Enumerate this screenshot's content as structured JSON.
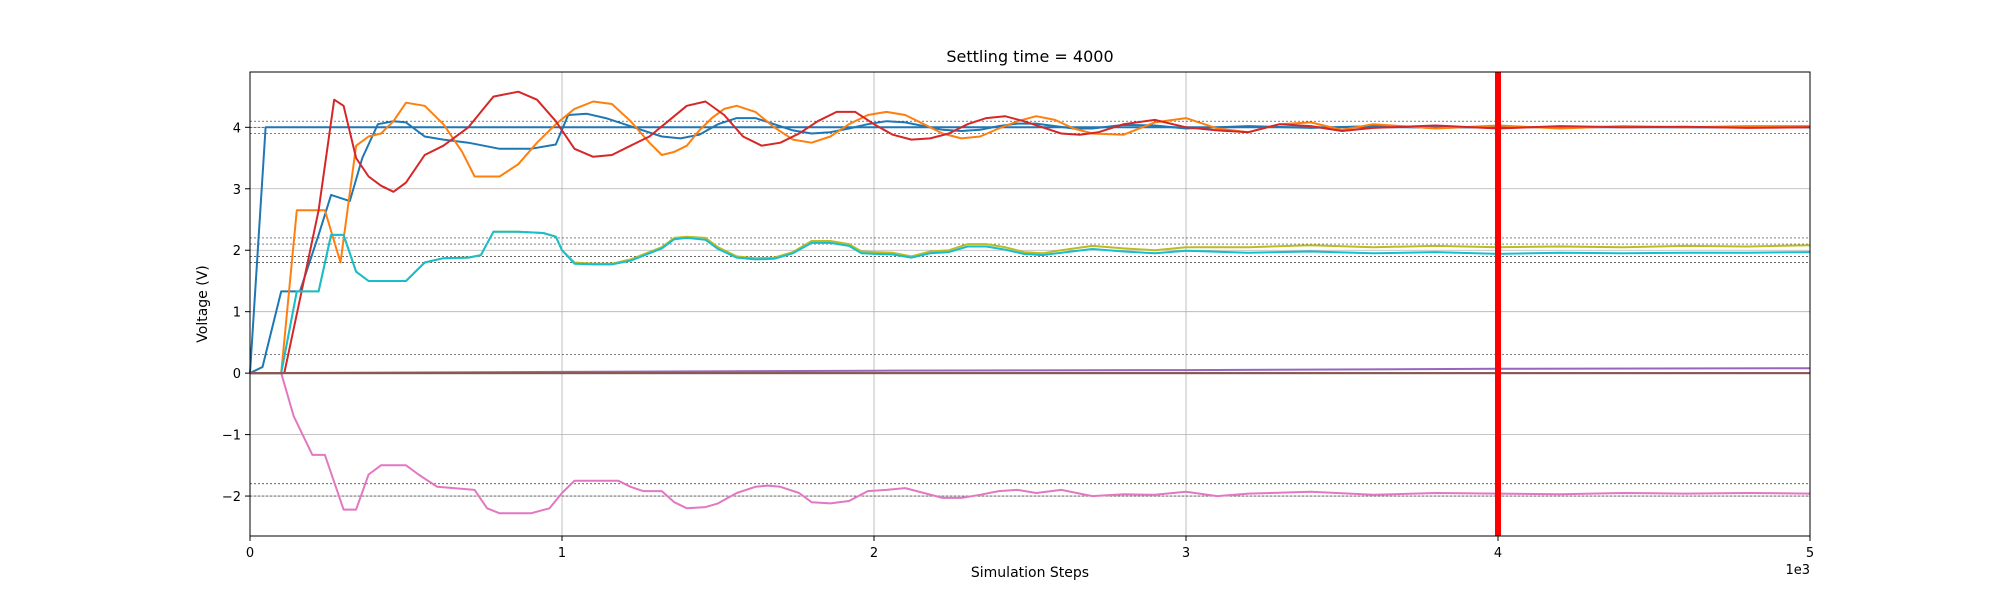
{
  "chart_data": {
    "type": "line",
    "title": "Settling time = 4000",
    "xlabel": "Simulation Steps",
    "ylabel": "Voltage (V)",
    "x_offset_label": "1e3",
    "xlim": [
      0,
      5000
    ],
    "ylim": [
      -2.65,
      4.9
    ],
    "grid": true,
    "x_ticks": [
      0,
      1000,
      2000,
      3000,
      4000,
      5000
    ],
    "x_tick_labels": [
      "0",
      "1",
      "2",
      "3",
      "4",
      "5"
    ],
    "y_ticks": [
      -2,
      -1,
      0,
      1,
      2,
      3,
      4
    ],
    "y_tick_labels": [
      "−2",
      "−1",
      "0",
      "1",
      "2",
      "3",
      "4"
    ],
    "settling_time": 4000,
    "settling_line_color": "#ff0000",
    "reference_lines": [
      4.1,
      4.0,
      3.9,
      2.2,
      2.1,
      1.9,
      1.8,
      0.3,
      -1.8,
      -2.0
    ],
    "series": [
      {
        "color": "#1f77b4",
        "x": [
          0,
          50,
          500,
          1000,
          5000
        ],
        "y": [
          0,
          4.0,
          4.0,
          4.0,
          4.0
        ]
      },
      {
        "color": "#1f77b4",
        "x": [
          0,
          40,
          100,
          160,
          220,
          260,
          320,
          360,
          410,
          460,
          500,
          560,
          620,
          700,
          800,
          900,
          980,
          1020,
          1080,
          1140,
          1200,
          1260,
          1320,
          1380,
          1440,
          1500,
          1560,
          1620,
          1680,
          1740,
          1800,
          1860,
          1920,
          1980,
          2040,
          2100,
          2160,
          2220,
          2280,
          2340,
          2400,
          2460,
          2520,
          2580,
          2640,
          2700,
          2800,
          2900,
          3000,
          3200,
          3400,
          3600,
          3800,
          4000,
          4200,
          4400,
          4600,
          4800,
          5000
        ],
        "y": [
          0,
          0.1,
          1.33,
          1.33,
          2.25,
          2.9,
          2.8,
          3.5,
          4.05,
          4.1,
          4.08,
          3.85,
          3.8,
          3.75,
          3.65,
          3.65,
          3.72,
          4.2,
          4.22,
          4.15,
          4.05,
          3.95,
          3.85,
          3.82,
          3.88,
          4.05,
          4.15,
          4.15,
          4.05,
          3.95,
          3.9,
          3.92,
          3.98,
          4.05,
          4.1,
          4.08,
          4.02,
          3.96,
          3.94,
          3.96,
          4.02,
          4.06,
          4.06,
          4.02,
          3.98,
          3.98,
          4.04,
          4.03,
          3.98,
          4.02,
          3.99,
          4.02,
          3.99,
          4.01,
          4.0,
          4.01,
          4.0,
          4.0,
          4.0
        ]
      },
      {
        "color": "#ff7f0e",
        "x": [
          0,
          60,
          100,
          150,
          240,
          290,
          340,
          380,
          420,
          460,
          500,
          560,
          620,
          680,
          720,
          800,
          860,
          920,
          980,
          1040,
          1100,
          1160,
          1220,
          1280,
          1320,
          1360,
          1400,
          1440,
          1480,
          1520,
          1560,
          1620,
          1680,
          1740,
          1800,
          1860,
          1920,
          1980,
          2040,
          2100,
          2160,
          2220,
          2280,
          2340,
          2400,
          2460,
          2520,
          2580,
          2640,
          2700,
          2800,
          2900,
          3000,
          3100,
          3200,
          3300,
          3400,
          3500,
          3600,
          3800,
          4000,
          4200,
          4400,
          4600,
          4800,
          5000
        ],
        "y": [
          0,
          0,
          0.0,
          2.65,
          2.65,
          1.8,
          3.7,
          3.85,
          3.9,
          4.1,
          4.4,
          4.35,
          4.05,
          3.6,
          3.2,
          3.2,
          3.4,
          3.75,
          4.05,
          4.3,
          4.42,
          4.38,
          4.1,
          3.75,
          3.55,
          3.6,
          3.7,
          3.95,
          4.15,
          4.3,
          4.35,
          4.25,
          4.0,
          3.8,
          3.75,
          3.85,
          4.05,
          4.2,
          4.25,
          4.2,
          4.05,
          3.9,
          3.82,
          3.85,
          3.98,
          4.1,
          4.18,
          4.12,
          3.98,
          3.9,
          3.88,
          4.08,
          4.15,
          3.98,
          3.92,
          4.05,
          4.08,
          3.96,
          4.05,
          3.98,
          4.03,
          3.98,
          4.02,
          4.0,
          4.02,
          4.02
        ]
      },
      {
        "color": "#d62728",
        "x": [
          0,
          80,
          110,
          160,
          220,
          270,
          300,
          340,
          380,
          420,
          460,
          500,
          560,
          620,
          700,
          780,
          860,
          920,
          980,
          1040,
          1100,
          1160,
          1220,
          1280,
          1340,
          1400,
          1460,
          1520,
          1580,
          1640,
          1700,
          1760,
          1820,
          1880,
          1940,
          2000,
          2060,
          2120,
          2180,
          2240,
          2300,
          2360,
          2420,
          2480,
          2540,
          2600,
          2660,
          2720,
          2800,
          2900,
          3000,
          3100,
          3200,
          3300,
          3400,
          3500,
          3600,
          3800,
          4000,
          4200,
          4400,
          4600,
          4800,
          5000
        ],
        "y": [
          0,
          0,
          0.0,
          1.2,
          2.65,
          4.45,
          4.35,
          3.5,
          3.2,
          3.05,
          2.95,
          3.1,
          3.55,
          3.7,
          4.0,
          4.5,
          4.58,
          4.45,
          4.1,
          3.65,
          3.52,
          3.55,
          3.7,
          3.85,
          4.1,
          4.35,
          4.42,
          4.2,
          3.85,
          3.7,
          3.75,
          3.9,
          4.1,
          4.25,
          4.25,
          4.05,
          3.88,
          3.8,
          3.82,
          3.9,
          4.05,
          4.15,
          4.18,
          4.1,
          4.0,
          3.9,
          3.88,
          3.92,
          4.05,
          4.12,
          4.0,
          3.95,
          3.92,
          4.05,
          4.02,
          3.94,
          3.99,
          4.03,
          3.98,
          4.02,
          4.0,
          4.01,
          3.99,
          4.0
        ]
      },
      {
        "color": "#bcbd22",
        "x": [
          0,
          80,
          100,
          150,
          220,
          260,
          300,
          340,
          380,
          420,
          500,
          560,
          620,
          700,
          740,
          780,
          860,
          940,
          980,
          1000,
          1040,
          1100,
          1160,
          1220,
          1280,
          1320,
          1360,
          1400,
          1460,
          1500,
          1560,
          1620,
          1680,
          1740,
          1800,
          1860,
          1920,
          1960,
          2000,
          2060,
          2120,
          2180,
          2240,
          2300,
          2360,
          2420,
          2480,
          2540,
          2600,
          2700,
          2800,
          2900,
          3000,
          3200,
          3400,
          3600,
          3800,
          4000,
          4200,
          4400,
          4600,
          4800,
          5000
        ],
        "y": [
          0,
          0,
          0,
          1.33,
          1.33,
          2.25,
          2.25,
          1.65,
          1.5,
          1.5,
          1.5,
          1.8,
          1.87,
          1.88,
          1.92,
          2.3,
          2.3,
          2.28,
          2.22,
          2.0,
          1.8,
          1.78,
          1.78,
          1.85,
          1.97,
          2.05,
          2.2,
          2.22,
          2.2,
          2.05,
          1.9,
          1.87,
          1.88,
          1.97,
          2.15,
          2.15,
          2.1,
          1.98,
          1.97,
          1.96,
          1.9,
          1.98,
          2.0,
          2.1,
          2.1,
          2.05,
          1.97,
          1.95,
          2.0,
          2.07,
          2.03,
          2.0,
          2.05,
          2.05,
          2.08,
          2.05,
          2.07,
          2.05,
          2.06,
          2.05,
          2.07,
          2.06,
          2.08
        ]
      },
      {
        "color": "#17becf",
        "x": [
          0,
          80,
          100,
          150,
          220,
          260,
          300,
          340,
          380,
          420,
          500,
          560,
          620,
          700,
          740,
          780,
          860,
          940,
          980,
          1000,
          1040,
          1100,
          1160,
          1220,
          1280,
          1320,
          1360,
          1400,
          1460,
          1500,
          1560,
          1620,
          1680,
          1740,
          1800,
          1860,
          1920,
          1960,
          2000,
          2060,
          2120,
          2180,
          2240,
          2300,
          2360,
          2420,
          2480,
          2540,
          2600,
          2700,
          2800,
          2900,
          3000,
          3200,
          3400,
          3600,
          3800,
          4000,
          4200,
          4400,
          4600,
          4800,
          5000
        ],
        "y": [
          0,
          0,
          0,
          1.33,
          1.33,
          2.25,
          2.25,
          1.65,
          1.5,
          1.5,
          1.5,
          1.8,
          1.87,
          1.88,
          1.92,
          2.3,
          2.3,
          2.28,
          2.22,
          2.0,
          1.78,
          1.77,
          1.77,
          1.83,
          1.95,
          2.03,
          2.18,
          2.2,
          2.17,
          2.02,
          1.88,
          1.85,
          1.86,
          1.95,
          2.12,
          2.12,
          2.07,
          1.95,
          1.94,
          1.93,
          1.88,
          1.95,
          1.97,
          2.06,
          2.06,
          2.01,
          1.94,
          1.92,
          1.96,
          2.02,
          1.98,
          1.95,
          1.99,
          1.96,
          1.98,
          1.95,
          1.97,
          1.94,
          1.96,
          1.95,
          1.96,
          1.96,
          1.97
        ]
      },
      {
        "color": "#e377c2",
        "x": [
          0,
          80,
          100,
          140,
          200,
          240,
          300,
          340,
          380,
          420,
          500,
          540,
          600,
          720,
          760,
          800,
          900,
          960,
          1000,
          1040,
          1100,
          1180,
          1220,
          1260,
          1320,
          1360,
          1400,
          1460,
          1500,
          1560,
          1620,
          1660,
          1700,
          1760,
          1800,
          1860,
          1920,
          1980,
          2040,
          2100,
          2160,
          2220,
          2280,
          2340,
          2400,
          2460,
          2520,
          2600,
          2700,
          2800,
          2900,
          3000,
          3100,
          3200,
          3400,
          3600,
          3800,
          4000,
          4200,
          4400,
          4600,
          4800,
          5000
        ],
        "y": [
          0,
          0,
          0,
          -0.7,
          -1.33,
          -1.33,
          -2.22,
          -2.22,
          -1.65,
          -1.5,
          -1.5,
          -1.65,
          -1.85,
          -1.9,
          -2.2,
          -2.28,
          -2.28,
          -2.2,
          -1.95,
          -1.75,
          -1.75,
          -1.75,
          -1.85,
          -1.92,
          -1.92,
          -2.1,
          -2.2,
          -2.18,
          -2.12,
          -1.95,
          -1.85,
          -1.83,
          -1.85,
          -1.95,
          -2.1,
          -2.12,
          -2.08,
          -1.92,
          -1.9,
          -1.87,
          -1.95,
          -2.03,
          -2.03,
          -1.98,
          -1.92,
          -1.9,
          -1.95,
          -1.9,
          -2.0,
          -1.97,
          -1.98,
          -1.93,
          -2.0,
          -1.96,
          -1.93,
          -1.98,
          -1.95,
          -1.96,
          -1.97,
          -1.95,
          -1.96,
          -1.95,
          -1.96
        ]
      },
      {
        "color": "#7f7f7f",
        "x": [
          0,
          5000
        ],
        "y": [
          0,
          0.0
        ]
      },
      {
        "color": "#9467bd",
        "x": [
          0,
          1000,
          2000,
          3000,
          4000,
          5000
        ],
        "y": [
          0,
          0.02,
          0.04,
          0.05,
          0.07,
          0.08
        ]
      },
      {
        "color": "#8c564b",
        "x": [
          0,
          5000
        ],
        "y": [
          0.0,
          0.0
        ]
      }
    ]
  }
}
